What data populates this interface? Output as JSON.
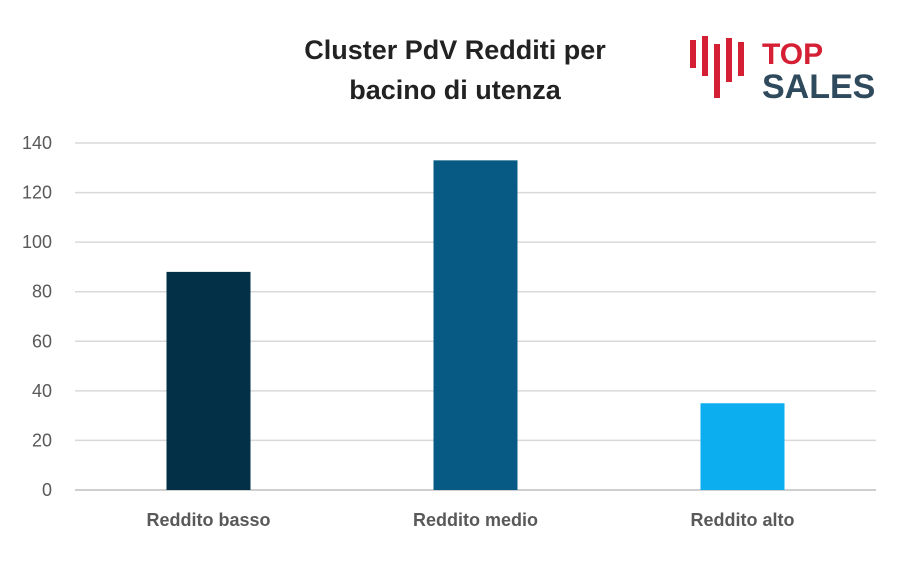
{
  "logo": {
    "line1": "TOP",
    "line2": "SALES",
    "colors": {
      "bars": "#d51f35",
      "top": "#d51f35",
      "sales": "#2f4a5c"
    }
  },
  "chart_data": {
    "type": "bar",
    "title_lines": [
      "Cluster PdV Redditi per",
      "bacino di utenza"
    ],
    "categories": [
      "Reddito basso",
      "Reddito medio",
      "Reddito alto"
    ],
    "values": [
      88,
      133,
      35
    ],
    "colors": [
      "#032f47",
      "#065a83",
      "#0caeef"
    ],
    "ylim": [
      0,
      140
    ],
    "yticks": [
      0,
      20,
      40,
      60,
      80,
      100,
      120,
      140
    ],
    "grid": true,
    "xlabel": "",
    "ylabel": ""
  }
}
